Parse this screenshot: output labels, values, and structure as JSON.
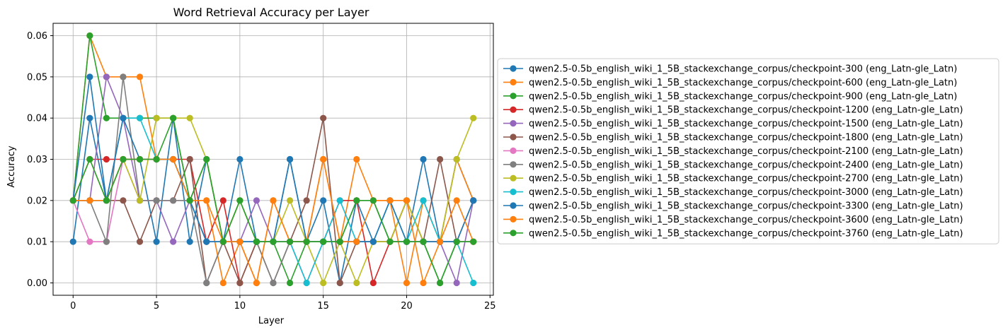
{
  "chart_data": {
    "type": "line",
    "title": "Word Retrieval Accuracy per Layer",
    "xlabel": "Layer",
    "ylabel": "Accuracy",
    "xlim": [
      -1.2,
      25.2
    ],
    "ylim": [
      -0.003,
      0.063
    ],
    "xticks": [
      0,
      5,
      10,
      15,
      20,
      25
    ],
    "yticks": [
      0.0,
      0.01,
      0.02,
      0.03,
      0.04,
      0.05,
      0.06
    ],
    "ytick_labels": [
      "0.00",
      "0.01",
      "0.02",
      "0.03",
      "0.04",
      "0.05",
      "0.06"
    ],
    "grid": true,
    "legend_placement": "center-left outside right",
    "x": [
      0,
      1,
      2,
      3,
      4,
      5,
      6,
      7,
      8,
      9,
      10,
      11,
      12,
      13,
      14,
      15,
      16,
      17,
      18,
      19,
      20,
      21,
      22,
      23,
      24
    ],
    "series": [
      {
        "name": "qwen2.5-0.5b_english_wiki_1_5B_stackexchange_corpus/checkpoint-300 (eng_Latn-gle_Latn)",
        "color": "#1f77b4",
        "values": [
          0.01,
          0.04,
          0.02,
          0.03,
          0.03,
          0.01,
          0.04,
          0.01,
          0.03,
          0.01,
          0.03,
          0.01,
          0.01,
          0.03,
          0.01,
          0.02,
          0.0,
          0.02,
          0.01,
          0.01,
          0.01,
          0.03,
          0.01,
          0.03,
          0.02
        ]
      },
      {
        "name": "qwen2.5-0.5b_english_wiki_1_5B_stackexchange_corpus/checkpoint-600 (eng_Latn-gle_Latn)",
        "color": "#ff7f0e",
        "values": [
          0.02,
          0.06,
          0.05,
          0.05,
          0.05,
          0.03,
          0.03,
          0.02,
          0.02,
          0.0,
          0.01,
          0.0,
          0.02,
          0.01,
          0.01,
          0.03,
          0.01,
          0.03,
          0.02,
          0.02,
          0.0,
          0.02,
          0.01,
          0.03,
          0.02
        ]
      },
      {
        "name": "qwen2.5-0.5b_english_wiki_1_5B_stackexchange_corpus/checkpoint-900 (eng_Latn-gle_Latn)",
        "color": "#2ca02c",
        "values": [
          0.02,
          0.06,
          0.04,
          0.04,
          0.04,
          0.04,
          0.04,
          0.02,
          0.03,
          0.01,
          0.02,
          0.01,
          0.01,
          0.0,
          0.01,
          0.01,
          0.01,
          0.02,
          0.02,
          0.01,
          0.02,
          0.01,
          0.0,
          0.01,
          0.01
        ]
      },
      {
        "name": "qwen2.5-0.5b_english_wiki_1_5B_stackexchange_corpus/checkpoint-1200 (eng_Latn-gle_Latn)",
        "color": "#d62728",
        "values": [
          0.02,
          0.03,
          0.03,
          0.03,
          0.03,
          0.03,
          0.03,
          0.03,
          0.01,
          0.02,
          0.0,
          0.01,
          0.01,
          0.01,
          0.01,
          0.01,
          0.02,
          0.02,
          0.0,
          0.01,
          0.02,
          0.01,
          0.01,
          0.01,
          0.01
        ]
      },
      {
        "name": "qwen2.5-0.5b_english_wiki_1_5B_stackexchange_corpus/checkpoint-1500 (eng_Latn-gle_Latn)",
        "color": "#9467bd",
        "values": [
          0.02,
          0.02,
          0.05,
          0.04,
          0.02,
          0.02,
          0.01,
          0.02,
          0.01,
          0.01,
          0.01,
          0.02,
          0.01,
          0.01,
          0.01,
          0.01,
          0.01,
          0.01,
          0.01,
          0.01,
          0.01,
          0.01,
          0.01,
          0.0,
          0.02
        ]
      },
      {
        "name": "qwen2.5-0.5b_english_wiki_1_5B_stackexchange_corpus/checkpoint-1800 (eng_Latn-gle_Latn)",
        "color": "#8c564b",
        "values": [
          0.02,
          0.02,
          0.02,
          0.02,
          0.01,
          0.02,
          0.02,
          0.03,
          0.0,
          0.01,
          0.0,
          0.01,
          0.0,
          0.01,
          0.02,
          0.04,
          0.0,
          0.01,
          0.01,
          0.01,
          0.01,
          0.01,
          0.03,
          0.01,
          0.02
        ]
      },
      {
        "name": "qwen2.5-0.5b_english_wiki_1_5B_stackexchange_corpus/checkpoint-2100 (eng_Latn-gle_Latn)",
        "color": "#e377c2",
        "values": [
          0.02,
          0.01,
          0.01,
          0.03,
          0.02,
          0.02,
          0.02,
          0.02,
          0.01,
          0.01,
          0.01,
          0.01,
          0.01,
          0.01,
          0.0,
          0.01,
          0.01,
          0.01,
          0.01,
          0.01,
          0.01,
          0.01,
          0.01,
          0.01,
          0.01
        ]
      },
      {
        "name": "qwen2.5-0.5b_english_wiki_1_5B_stackexchange_corpus/checkpoint-2400 (eng_Latn-gle_Latn)",
        "color": "#7f7f7f",
        "values": [
          0.02,
          0.02,
          0.01,
          0.05,
          0.02,
          0.02,
          0.02,
          0.02,
          0.0,
          0.01,
          0.01,
          0.01,
          0.0,
          0.01,
          0.01,
          0.01,
          0.01,
          0.01,
          0.01,
          0.01,
          0.01,
          0.01,
          0.01,
          0.01,
          0.01
        ]
      },
      {
        "name": "qwen2.5-0.5b_english_wiki_1_5B_stackexchange_corpus/checkpoint-2700 (eng_Latn-gle_Latn)",
        "color": "#bcbd22",
        "values": [
          0.02,
          0.03,
          0.02,
          0.03,
          0.02,
          0.04,
          0.04,
          0.04,
          0.03,
          0.01,
          0.02,
          0.01,
          0.01,
          0.02,
          0.01,
          0.0,
          0.01,
          0.0,
          0.01,
          0.01,
          0.02,
          0.01,
          0.01,
          0.03,
          0.04
        ]
      },
      {
        "name": "qwen2.5-0.5b_english_wiki_1_5B_stackexchange_corpus/checkpoint-3000 (eng_Latn-gle_Latn)",
        "color": "#17becf",
        "values": [
          0.02,
          0.02,
          0.02,
          0.04,
          0.04,
          0.03,
          0.03,
          0.02,
          0.01,
          0.01,
          0.01,
          0.01,
          0.01,
          0.01,
          0.0,
          0.01,
          0.02,
          0.01,
          0.01,
          0.02,
          0.01,
          0.02,
          0.01,
          0.01,
          0.0
        ]
      },
      {
        "name": "qwen2.5-0.5b_english_wiki_1_5B_stackexchange_corpus/checkpoint-3300 (eng_Latn-gle_Latn)",
        "color": "#1f77b4",
        "values": [
          0.02,
          0.05,
          0.02,
          0.04,
          0.03,
          0.03,
          0.03,
          0.02,
          0.01,
          0.01,
          0.01,
          0.01,
          0.01,
          0.03,
          0.01,
          0.01,
          0.01,
          0.01,
          0.01,
          0.02,
          0.01,
          0.01,
          0.01,
          0.01,
          0.02
        ]
      },
      {
        "name": "qwen2.5-0.5b_english_wiki_1_5B_stackexchange_corpus/checkpoint-3600 (eng_Latn-gle_Latn)",
        "color": "#ff7f0e",
        "values": [
          0.02,
          0.02,
          0.02,
          0.03,
          0.03,
          0.03,
          0.03,
          0.02,
          0.02,
          0.01,
          0.01,
          0.0,
          0.02,
          0.01,
          0.01,
          0.03,
          0.01,
          0.01,
          0.02,
          0.02,
          0.02,
          0.0,
          0.01,
          0.02,
          0.01
        ]
      },
      {
        "name": "qwen2.5-0.5b_english_wiki_1_5B_stackexchange_corpus/checkpoint-3760 (eng_Latn-gle_Latn)",
        "color": "#2ca02c",
        "values": [
          0.02,
          0.03,
          0.02,
          0.03,
          0.03,
          0.03,
          0.04,
          0.02,
          0.03,
          0.01,
          0.02,
          0.01,
          0.01,
          0.01,
          0.01,
          0.01,
          0.01,
          0.02,
          0.02,
          0.01,
          0.01,
          0.01,
          0.0,
          0.01,
          0.01
        ]
      }
    ]
  }
}
